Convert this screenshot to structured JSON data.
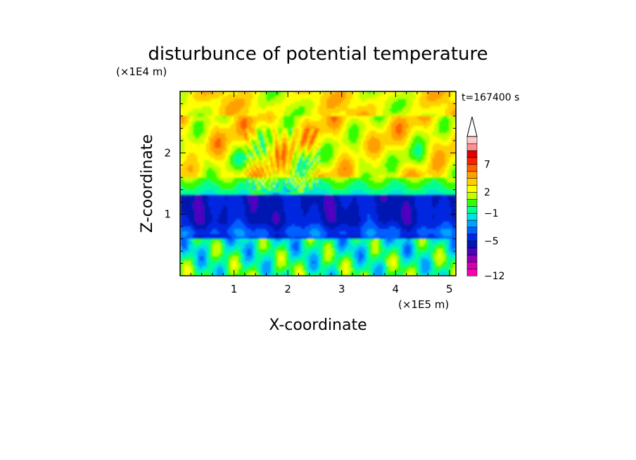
{
  "chart_data": {
    "type": "heatmap",
    "title": "disturbunce of potential temperature",
    "xlabel": "X-coordinate",
    "ylabel": "Z-coordinate",
    "x_unit": "(×1E5 m)",
    "y_unit": "(×1E4 m)",
    "time_label": "t=167400 s",
    "xlim": [
      0,
      5.12
    ],
    "ylim": [
      0,
      3.0
    ],
    "x_ticks": [
      1,
      2,
      3,
      4,
      5
    ],
    "y_ticks": [
      1,
      2
    ],
    "colorbar": {
      "levels": [
        -12,
        -11,
        -9,
        -7,
        -6,
        -5,
        -4,
        -3,
        -2,
        -1,
        0,
        1,
        2,
        3,
        4,
        5,
        7,
        8,
        9,
        10,
        11
      ],
      "colors": [
        "#ff00b0",
        "#d000b0",
        "#9000b0",
        "#5000c0",
        "#0018b0",
        "#0028e0",
        "#0060ff",
        "#00a0ff",
        "#00e0e0",
        "#00ff90",
        "#30ff00",
        "#c0ff00",
        "#ffff00",
        "#ffd000",
        "#ffa000",
        "#ff6000",
        "#ff2000",
        "#e00000",
        "#ff9090",
        "#ffc8c8"
      ],
      "tick_labels": [
        "-12",
        "-5",
        "-1",
        "2",
        "7"
      ],
      "extend": "max"
    },
    "bands": [
      {
        "z_range": [
          2.6,
          3.0
        ],
        "mean_value": 3,
        "description": "upper layer, yellow with orange patches"
      },
      {
        "z_range": [
          1.6,
          2.6
        ],
        "mean_value": 2,
        "description": "orange and yellow wave crests"
      },
      {
        "z_range": [
          1.3,
          1.6
        ],
        "mean_value": 0,
        "description": "green/cyan transition"
      },
      {
        "z_range": [
          0.6,
          1.3
        ],
        "mean_value": -5,
        "description": "dark blue cold layer"
      },
      {
        "z_range": [
          0.0,
          0.6
        ],
        "mean_value": -1,
        "description": "cyan/green/yellow near surface"
      }
    ]
  }
}
